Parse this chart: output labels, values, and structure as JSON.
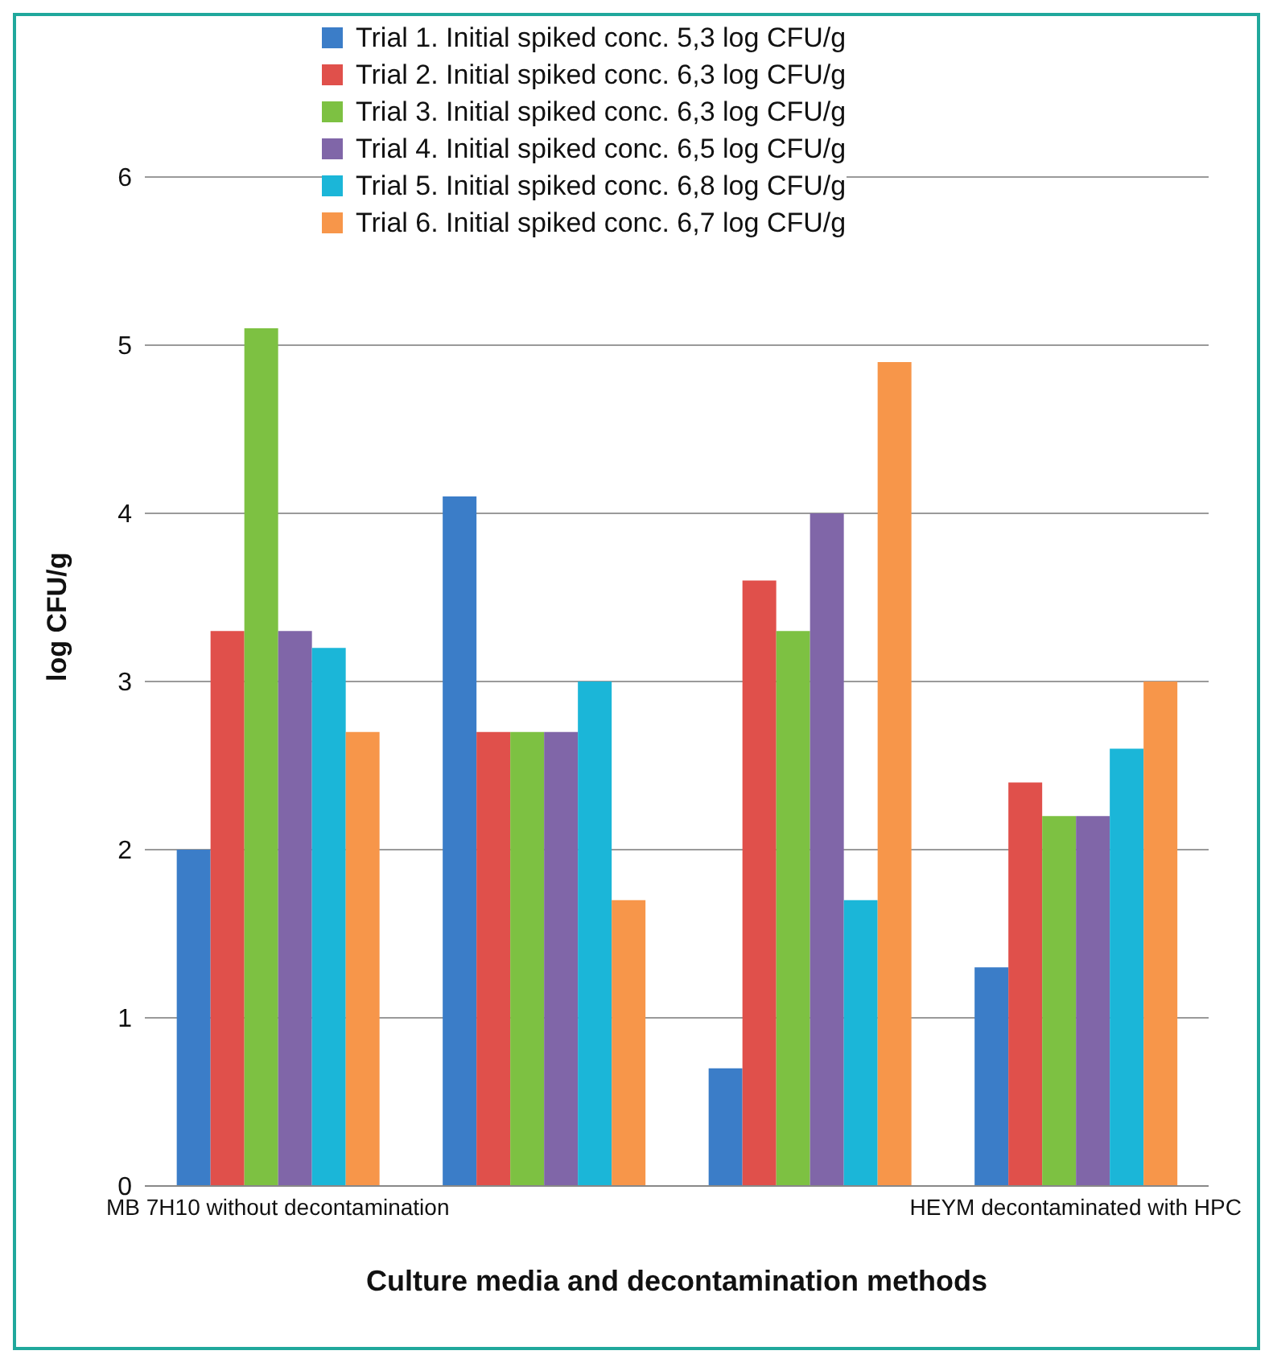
{
  "chart_data": {
    "type": "bar",
    "xlabel": "Culture media and decontamination methods",
    "ylabel": "log CFU/g",
    "categories": [
      "MB 7H10 without decontamination",
      null,
      null,
      "HEYM decontaminated with HPC"
    ],
    "series": [
      {
        "name": "Trial 1. Initial spiked conc. 5,3 log CFU/g",
        "color": "#3b7dc8",
        "values": [
          2.0,
          4.1,
          0.7,
          1.3
        ]
      },
      {
        "name": "Trial 2. Initial spiked conc. 6,3 log CFU/g",
        "color": "#e0504b",
        "values": [
          3.3,
          2.7,
          3.6,
          2.4
        ]
      },
      {
        "name": "Trial 3. Initial spiked conc. 6,3 log CFU/g",
        "color": "#7dc142",
        "values": [
          5.1,
          2.7,
          3.3,
          2.2
        ]
      },
      {
        "name": "Trial 4. Initial spiked conc. 6,5 log CFU/g",
        "color": "#8066a8",
        "values": [
          3.3,
          2.7,
          4.0,
          2.2
        ]
      },
      {
        "name": "Trial 5. Initial spiked conc. 6,8 log CFU/g",
        "color": "#1bb6d8",
        "values": [
          3.2,
          3.0,
          1.7,
          2.6
        ]
      },
      {
        "name": "Trial 6. Initial spiked conc. 6,7 log CFU/g",
        "color": "#f7964a",
        "values": [
          2.7,
          1.7,
          4.9,
          3.0
        ]
      }
    ],
    "ylim": [
      0,
      6
    ],
    "yticks": [
      0,
      1,
      2,
      3,
      4,
      5,
      6
    ],
    "grid": "y",
    "legend": "top"
  }
}
